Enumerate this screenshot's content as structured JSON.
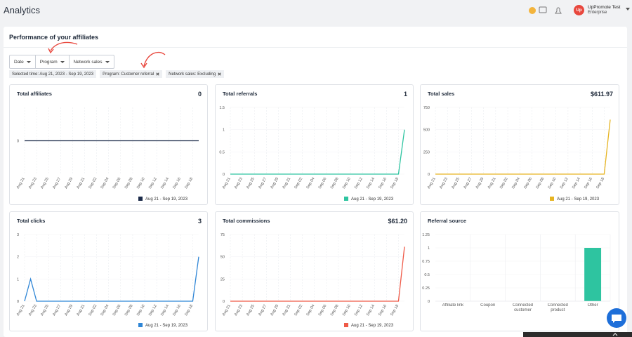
{
  "header": {
    "title": "Analytics",
    "user": {
      "initials": "Up",
      "name": "UpPromote Test",
      "plan": "Enterprise"
    }
  },
  "section_title": "Performance of your affiliates",
  "filters": [
    "Date",
    "Program",
    "Network sales"
  ],
  "chips": [
    "Selected time: Aug 21, 2023 - Sep 19, 2023",
    "Program: Customer referral",
    "Network sales: Excluding"
  ],
  "chart_data": [
    {
      "type": "line",
      "title": "Total affiliates",
      "total": "0",
      "categories": [
        "Aug 21",
        null,
        "Aug 23",
        null,
        "Aug 25",
        null,
        "Aug 27",
        null,
        "Aug 29",
        null,
        "Aug 31",
        null,
        "Sep 02",
        null,
        "Sep 04",
        null,
        "Sep 06",
        null,
        "Sep 08",
        null,
        "Sep 10",
        null,
        "Sep 12",
        null,
        "Sep 14",
        null,
        "Sep 16",
        null,
        "Sep 18",
        null
      ],
      "series": [
        {
          "name": "Aug 21 - Sep 19, 2023",
          "color": "#1c2b4a",
          "values": [
            0,
            0,
            0,
            0,
            0,
            0,
            0,
            0,
            0,
            0,
            0,
            0,
            0,
            0,
            0,
            0,
            0,
            0,
            0,
            0,
            0,
            0,
            0,
            0,
            0,
            0,
            0,
            0,
            0,
            0
          ]
        }
      ],
      "ylim": [
        -1,
        1
      ],
      "yticks": [
        0
      ],
      "grid": true
    },
    {
      "type": "line",
      "title": "Total referrals",
      "total": "1",
      "categories": [
        "Aug 21",
        null,
        "Aug 23",
        null,
        "Aug 25",
        null,
        "Aug 27",
        null,
        "Aug 29",
        null,
        "Aug 31",
        null,
        "Sep 02",
        null,
        "Sep 04",
        null,
        "Sep 06",
        null,
        "Sep 08",
        null,
        "Sep 10",
        null,
        "Sep 12",
        null,
        "Sep 14",
        null,
        "Sep 16",
        null,
        "Sep 18",
        null
      ],
      "series": [
        {
          "name": "Aug 21 - Sep 19, 2023",
          "color": "#2ec4a0",
          "values": [
            0,
            0,
            0,
            0,
            0,
            0,
            0,
            0,
            0,
            0,
            0,
            0,
            0,
            0,
            0,
            0,
            0,
            0,
            0,
            0,
            0,
            0,
            0,
            0,
            0,
            0,
            0,
            0,
            0,
            1
          ]
        }
      ],
      "ylim": [
        0,
        1.5
      ],
      "yticks": [
        0,
        0.5,
        1,
        1.5
      ],
      "grid": true
    },
    {
      "type": "line",
      "title": "Total sales",
      "total": "$611.97",
      "categories": [
        "Aug 21",
        null,
        "Aug 23",
        null,
        "Aug 25",
        null,
        "Aug 27",
        null,
        "Aug 29",
        null,
        "Aug 31",
        null,
        "Sep 02",
        null,
        "Sep 04",
        null,
        "Sep 06",
        null,
        "Sep 08",
        null,
        "Sep 10",
        null,
        "Sep 12",
        null,
        "Sep 14",
        null,
        "Sep 16",
        null,
        "Sep 18",
        null
      ],
      "series": [
        {
          "name": "Aug 21 - Sep 19, 2023",
          "color": "#e6b422",
          "values": [
            0,
            0,
            0,
            0,
            0,
            0,
            0,
            0,
            0,
            0,
            0,
            0,
            0,
            0,
            0,
            0,
            0,
            0,
            0,
            0,
            0,
            0,
            0,
            0,
            0,
            0,
            0,
            0,
            0,
            611.97
          ]
        }
      ],
      "ylim": [
        0,
        750
      ],
      "yticks": [
        0,
        250,
        500,
        750
      ],
      "grid": true
    },
    {
      "type": "line",
      "title": "Total clicks",
      "total": "3",
      "categories": [
        "Aug 21",
        null,
        "Aug 23",
        null,
        "Aug 25",
        null,
        "Aug 27",
        null,
        "Aug 29",
        null,
        "Aug 31",
        null,
        "Sep 02",
        null,
        "Sep 04",
        null,
        "Sep 06",
        null,
        "Sep 08",
        null,
        "Sep 10",
        null,
        "Sep 12",
        null,
        "Sep 14",
        null,
        "Sep 16",
        null,
        "Sep 18",
        null
      ],
      "series": [
        {
          "name": "Aug 21 - Sep 19, 2023",
          "color": "#2f86d6",
          "values": [
            0,
            1,
            0,
            0,
            0,
            0,
            0,
            0,
            0,
            0,
            0,
            0,
            0,
            0,
            0,
            0,
            0,
            0,
            0,
            0,
            0,
            0,
            0,
            0,
            0,
            0,
            0,
            0,
            0,
            2
          ]
        }
      ],
      "ylim": [
        0,
        3
      ],
      "yticks": [
        0,
        1,
        2,
        3
      ],
      "grid": true
    },
    {
      "type": "line",
      "title": "Total commissions",
      "total": "$61.20",
      "categories": [
        "Aug 21",
        null,
        "Aug 23",
        null,
        "Aug 25",
        null,
        "Aug 27",
        null,
        "Aug 29",
        null,
        "Aug 31",
        null,
        "Sep 02",
        null,
        "Sep 04",
        null,
        "Sep 06",
        null,
        "Sep 08",
        null,
        "Sep 10",
        null,
        "Sep 12",
        null,
        "Sep 14",
        null,
        "Sep 16",
        null,
        "Sep 18",
        null
      ],
      "series": [
        {
          "name": "Aug 21 - Sep 19, 2023",
          "color": "#ef5a48",
          "values": [
            0,
            0,
            0,
            0,
            0,
            0,
            0,
            0,
            0,
            0,
            0,
            0,
            0,
            0,
            0,
            0,
            0,
            0,
            0,
            0,
            0,
            0,
            0,
            0,
            0,
            0,
            0,
            0,
            0,
            61.2
          ]
        }
      ],
      "ylim": [
        0,
        75
      ],
      "yticks": [
        0,
        25,
        50,
        75
      ],
      "grid": true
    },
    {
      "type": "bar",
      "title": "Referral source",
      "categories": [
        "Affiliate link",
        "Coupon",
        "Connected customer",
        "Connected product",
        "Other"
      ],
      "values": [
        0,
        0,
        0,
        0,
        1
      ],
      "color": "#2ec4a0",
      "ylim": [
        0,
        1.25
      ],
      "yticks": [
        0,
        0.25,
        0.5,
        0.75,
        1,
        1.25
      ],
      "grid": true
    }
  ]
}
